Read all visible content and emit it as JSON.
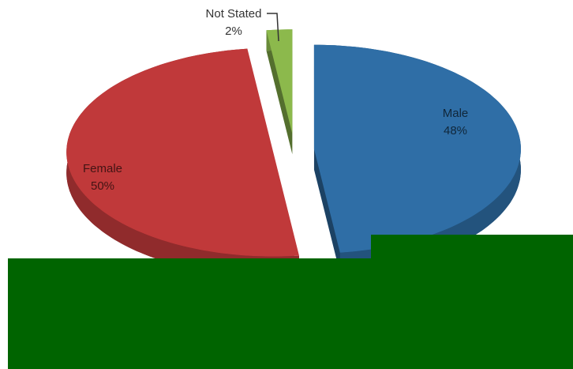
{
  "chart_data": {
    "type": "pie",
    "categories": [
      "Male",
      "Female",
      "Not Stated"
    ],
    "values": [
      48,
      50,
      2
    ],
    "value_labels": [
      "48%",
      "50%",
      "2%"
    ],
    "colors": [
      "#2f6ea6",
      "#c0393a",
      "#8cb94c"
    ]
  }
}
